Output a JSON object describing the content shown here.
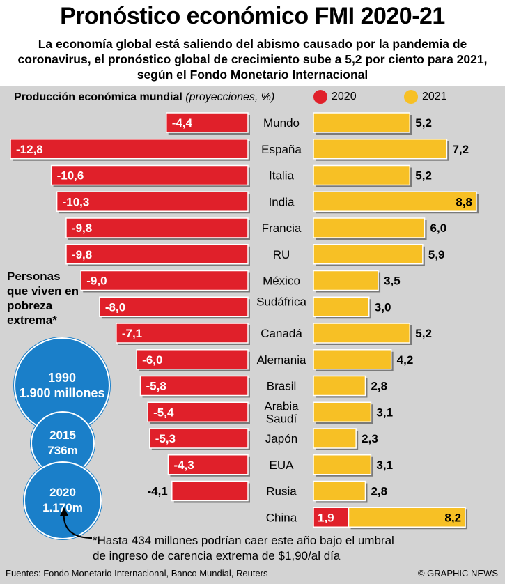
{
  "title": "Pronóstico económico FMI 2020-21",
  "subtitle": "La economía global está saliendo del abismo causado por la pandemia de coronavirus, el pronóstico global de crecimiento sube a 5,2 por ciento para 2021, según el Fondo Monetario Internacional",
  "legend": {
    "label_bold": "Producción económica mundial",
    "label_italic": "(proyecciones, %)",
    "series_2020": "2020",
    "series_2021": "2021"
  },
  "colors": {
    "red": "#e0202a",
    "yellow": "#f7c025",
    "blue": "#1a7fc9",
    "panel": "#d3d3d3"
  },
  "chart_data": {
    "type": "bar",
    "categories": [
      "Mundo",
      "España",
      "Italia",
      "India",
      "Francia",
      "RU",
      "México",
      "Sudáfrica",
      "Canadá",
      "Alemania",
      "Brasil",
      "Arabia Saudí",
      "Japón",
      "EUA",
      "Rusia",
      "China"
    ],
    "series": [
      {
        "name": "2020",
        "values": [
          -4.4,
          -12.8,
          -10.6,
          -10.3,
          -9.8,
          -9.8,
          -9.0,
          -8.0,
          -7.1,
          -6.0,
          -5.8,
          -5.4,
          -5.3,
          -4.3,
          -4.1,
          1.9
        ],
        "labels": [
          "-4,4",
          "-12,8",
          "-10,6",
          "-10,3",
          "-9,8",
          "-9,8",
          "-9,0",
          "-8,0",
          "-7,1",
          "-6,0",
          "-5,8",
          "-5,4",
          "-5,3",
          "-4,3",
          "-4,1",
          "1,9"
        ]
      },
      {
        "name": "2021",
        "values": [
          5.2,
          7.2,
          5.2,
          8.8,
          6.0,
          5.9,
          3.5,
          3.0,
          5.2,
          4.2,
          2.8,
          3.1,
          2.3,
          3.1,
          2.8,
          8.2
        ],
        "labels": [
          "5,2",
          "7,2",
          "5,2",
          "8,8",
          "6,0",
          "5,9",
          "3,5",
          "3,0",
          "5,2",
          "4,2",
          "2,8",
          "3,1",
          "2,3",
          "3,1",
          "2,8",
          "8,2"
        ]
      }
    ]
  },
  "poverty": {
    "label": "Personas que viven en pobreza extrema*",
    "bubbles": [
      {
        "year": "1990",
        "value": "1.900 millones"
      },
      {
        "year": "2015",
        "value": "736m"
      },
      {
        "year": "2020",
        "value": "1.170m"
      }
    ]
  },
  "note": "*Hasta 434 millones podrían caer este año bajo el umbral de ingreso de carencia extrema de $1,90/al día",
  "sources": "Fuentes: Fondo Monetario Internacional, Banco Mundial, Reuters",
  "credit": "© GRAPHIC NEWS"
}
